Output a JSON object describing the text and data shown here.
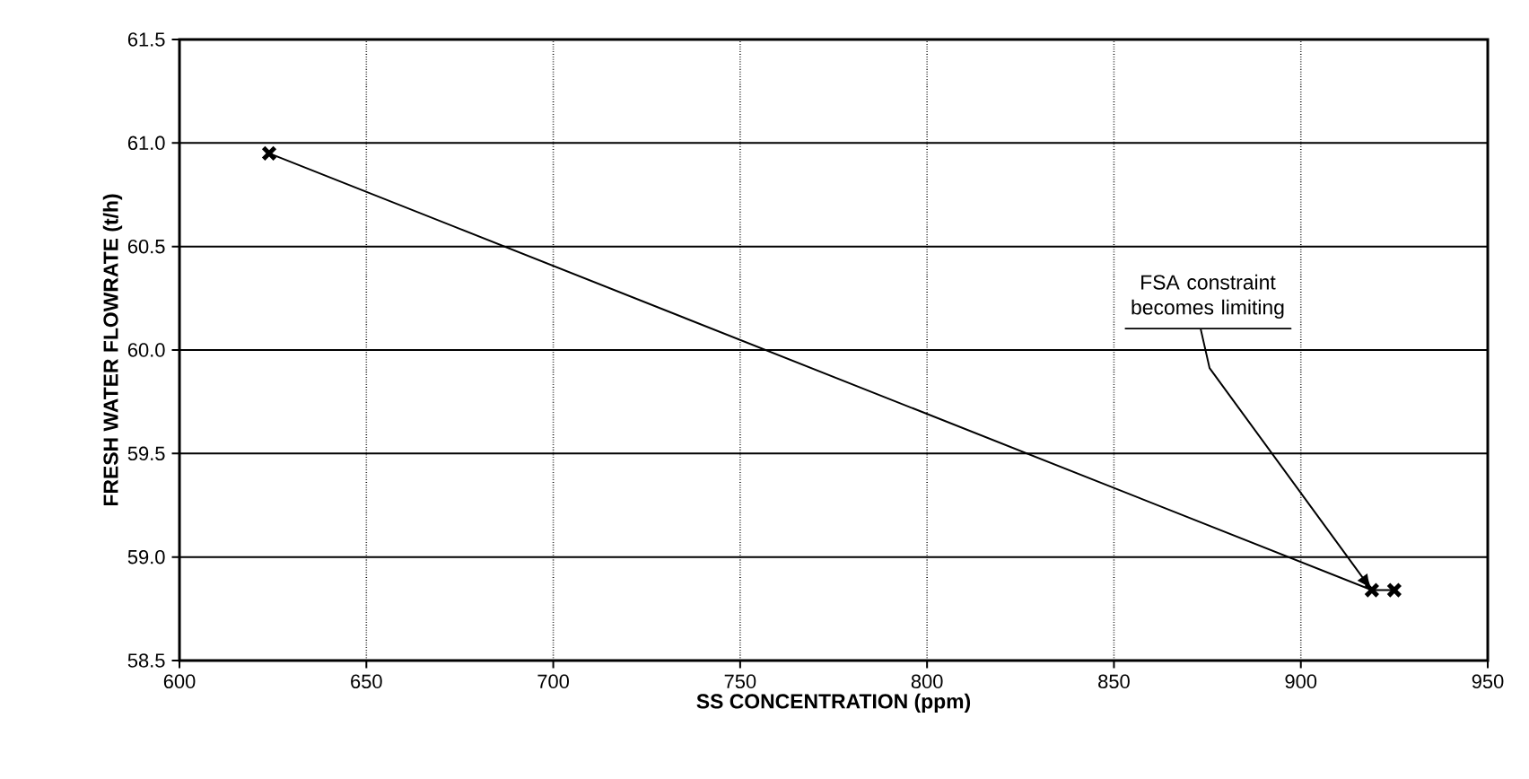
{
  "chart_data": {
    "type": "line",
    "xlabel": "SS CONCENTRATION (ppm)",
    "ylabel": "FRESH WATER FLOWRATE (t/h)",
    "x": [
      624,
      919,
      925
    ],
    "series": [
      {
        "color": "#000000",
        "values": [
          60.95,
          58.84,
          58.84
        ]
      }
    ],
    "xlim": [
      600,
      950
    ],
    "xticks": [
      600,
      650,
      700,
      750,
      800,
      850,
      900,
      950
    ],
    "ylim": [
      58.5,
      61.5
    ],
    "yticks": [
      {
        "value": 58.5,
        "label": "58.5"
      },
      {
        "value": 59.0,
        "label": "59.0"
      },
      {
        "value": 59.5,
        "label": "59.5"
      },
      {
        "value": 60.0,
        "label": "60.0"
      },
      {
        "value": 60.5,
        "label": "60.5"
      },
      {
        "value": 61.0,
        "label": "61.0"
      },
      {
        "value": 61.5,
        "label": "61.5"
      }
    ],
    "grid": true,
    "marker": "cross",
    "line_style": "solid",
    "annotations": [
      {
        "text": "FSA constraint becomes limiting",
        "x": 919,
        "y": 58.84
      }
    ]
  }
}
